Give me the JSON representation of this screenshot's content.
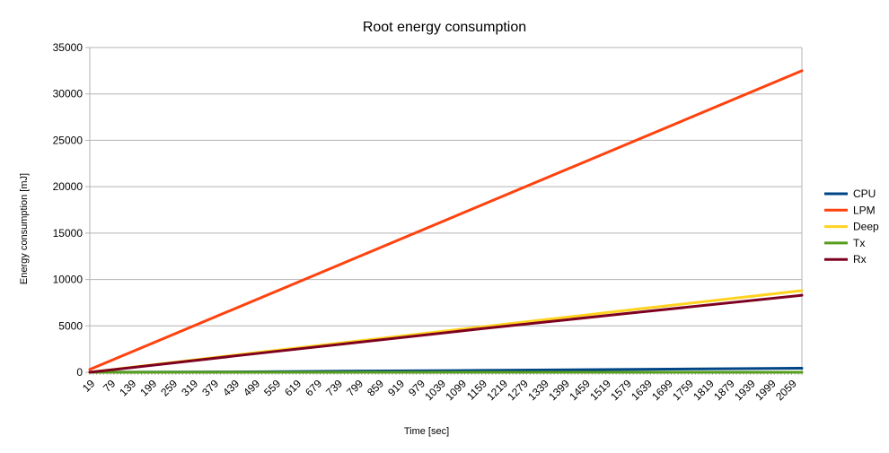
{
  "chart_data": {
    "type": "line",
    "title": "Root energy consumption",
    "xlabel": "Time [sec]",
    "ylabel": "Energy consumption [mJ]",
    "ylim": [
      0,
      35000
    ],
    "yticks": [
      0,
      5000,
      10000,
      15000,
      20000,
      25000,
      30000,
      35000
    ],
    "x_start": 19,
    "x_end": 2089,
    "x_tick_labels": [
      "19",
      "79",
      "139",
      "199",
      "259",
      "319",
      "379",
      "439",
      "499",
      "559",
      "619",
      "679",
      "739",
      "799",
      "859",
      "919",
      "979",
      "1039",
      "1099",
      "1159",
      "1219",
      "1279",
      "1339",
      "1399",
      "1459",
      "1519",
      "1579",
      "1639",
      "1699",
      "1759",
      "1819",
      "1879",
      "1939",
      "1999",
      "2059"
    ],
    "grid": "horizontal",
    "legend": "right",
    "series": [
      {
        "name": "CPU",
        "color": "#004586",
        "x": [
          19,
          499,
          679,
          1159,
          1609,
          2089
        ],
        "values": [
          0,
          50,
          100,
          200,
          320,
          440
        ]
      },
      {
        "name": "LPM",
        "color": "#ff420e",
        "x": [
          19,
          2089
        ],
        "values": [
          300,
          32500
        ]
      },
      {
        "name": "Deep",
        "color": "#ffd320",
        "x": [
          19,
          499,
          1159,
          1609,
          2089
        ],
        "values": [
          0,
          2100,
          4900,
          6800,
          8800
        ]
      },
      {
        "name": "Tx",
        "color": "#579d1c",
        "x": [
          19,
          2089
        ],
        "values": [
          0,
          0
        ]
      },
      {
        "name": "Rx",
        "color": "#7e0021",
        "x": [
          19,
          499,
          1159,
          1609,
          2089
        ],
        "values": [
          0,
          2000,
          4700,
          6450,
          8300
        ]
      }
    ]
  }
}
